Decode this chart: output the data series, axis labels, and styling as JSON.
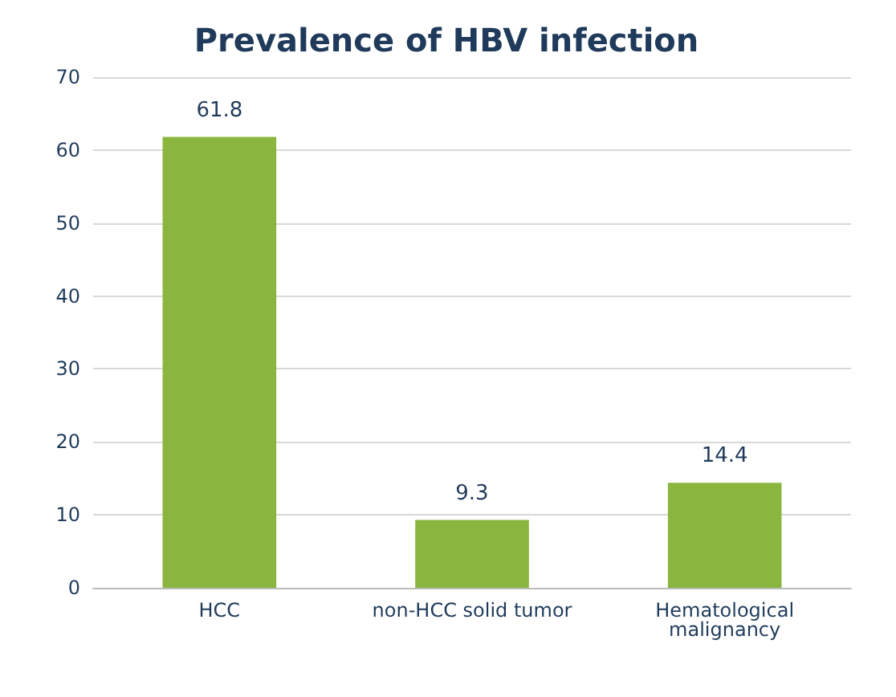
{
  "chart_data": {
    "type": "bar",
    "title": "Prevalence of HBV infection",
    "categories": [
      "HCC",
      "non-HCC solid tumor",
      "Hematological\nmalignancy"
    ],
    "values": [
      61.8,
      9.3,
      14.4
    ],
    "color": "#8ab53e",
    "ylim": [
      0,
      70
    ],
    "yticks": [
      0,
      10,
      20,
      30,
      40,
      50,
      60,
      70
    ],
    "grid": "y",
    "data_labels": true
  }
}
